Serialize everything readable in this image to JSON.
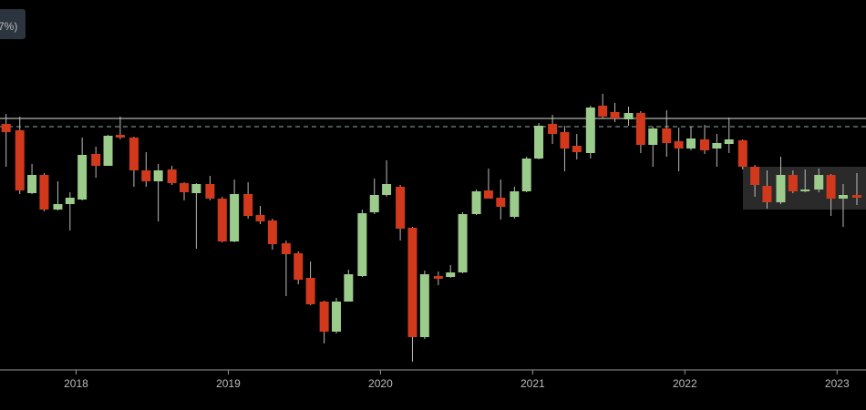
{
  "chart_data": {
    "type": "candlestick",
    "badge": "7%)",
    "x": [
      2017.54,
      2017.63,
      2017.71,
      2017.79,
      2017.88,
      2017.96,
      2018.04,
      2018.13,
      2018.21,
      2018.29,
      2018.38,
      2018.46,
      2018.54,
      2018.63,
      2018.71,
      2018.79,
      2018.88,
      2018.96,
      2019.04,
      2019.13,
      2019.21,
      2019.29,
      2019.38,
      2019.46,
      2019.54,
      2019.63,
      2019.71,
      2019.79,
      2019.88,
      2019.96,
      2020.04,
      2020.13,
      2020.21,
      2020.29,
      2020.38,
      2020.46,
      2020.54,
      2020.63,
      2020.71,
      2020.79,
      2020.88,
      2020.96,
      2021.04,
      2021.13,
      2021.21,
      2021.29,
      2021.38,
      2021.46,
      2021.54,
      2021.63,
      2021.71,
      2021.79,
      2021.88,
      2021.96,
      2022.04,
      2022.13,
      2022.21,
      2022.29,
      2022.38,
      2022.46,
      2022.54,
      2022.63,
      2022.71,
      2022.79,
      2022.88,
      2022.96,
      2023.04,
      2023.13
    ],
    "open": [
      269,
      262,
      193,
      213,
      175,
      181,
      186,
      236,
      223,
      257,
      254,
      218,
      206,
      219,
      204,
      193,
      203,
      187,
      140,
      192,
      169,
      163,
      138,
      127,
      100,
      74,
      41,
      74,
      102,
      172,
      191,
      200,
      155,
      35,
      102,
      101,
      106,
      170,
      196,
      188,
      167,
      195,
      231,
      269,
      260,
      245,
      237,
      289,
      282,
      274,
      281,
      246,
      264,
      250,
      242,
      252,
      242,
      247,
      251,
      222,
      201,
      183,
      213,
      195,
      197,
      213,
      187,
      191
    ],
    "high": [
      280,
      277,
      225,
      215,
      206,
      194,
      254,
      244,
      257,
      277,
      255,
      238,
      225,
      223,
      205,
      204,
      212,
      189,
      208,
      205,
      179,
      165,
      141,
      129,
      118,
      75,
      78,
      109,
      175,
      209,
      229,
      202,
      156,
      108,
      107,
      114,
      172,
      197,
      220,
      208,
      200,
      233,
      270,
      279,
      267,
      258,
      289,
      302,
      292,
      288,
      283,
      266,
      284,
      265,
      266,
      268,
      258,
      276,
      252,
      224,
      218,
      233,
      218,
      219,
      220,
      214,
      203,
      215
    ],
    "low": [
      222,
      192,
      192,
      173,
      174,
      152,
      185,
      210,
      223,
      252,
      200,
      200,
      162,
      202,
      185,
      132,
      185,
      139,
      139,
      165,
      159,
      131,
      80,
      93,
      70,
      28,
      39,
      74,
      101,
      170,
      189,
      141,
      8,
      33,
      92,
      100,
      105,
      169,
      187,
      164,
      165,
      194,
      230,
      247,
      217,
      230,
      231,
      275,
      271,
      267,
      237,
      222,
      233,
      217,
      240,
      236,
      222,
      237,
      219,
      189,
      176,
      181,
      193,
      194,
      194,
      168,
      156,
      180
    ],
    "close": [
      260,
      196,
      213,
      175,
      181,
      188,
      235,
      223,
      256,
      254,
      218,
      206,
      218,
      204,
      194,
      203,
      187,
      140,
      192,
      168,
      162,
      137,
      126,
      98,
      71,
      41,
      74,
      104,
      171,
      191,
      203,
      154,
      35,
      104,
      99,
      106,
      170,
      195,
      187,
      178,
      195,
      231,
      267,
      258,
      242,
      238,
      287,
      277,
      275,
      281,
      246,
      264,
      248,
      242,
      253,
      240,
      248,
      252,
      222,
      202,
      183,
      213,
      195,
      197,
      213,
      187,
      191,
      188
    ],
    "up_color": "#9ccc8c",
    "down_color": "#d2391c",
    "reference_lines": [
      275,
      266
    ],
    "xlim": [
      2017.5,
      2023.19
    ],
    "ylim": [
      0,
      405
    ],
    "xticks": [
      2018,
      2019,
      2020,
      2021,
      2022,
      2023
    ]
  }
}
